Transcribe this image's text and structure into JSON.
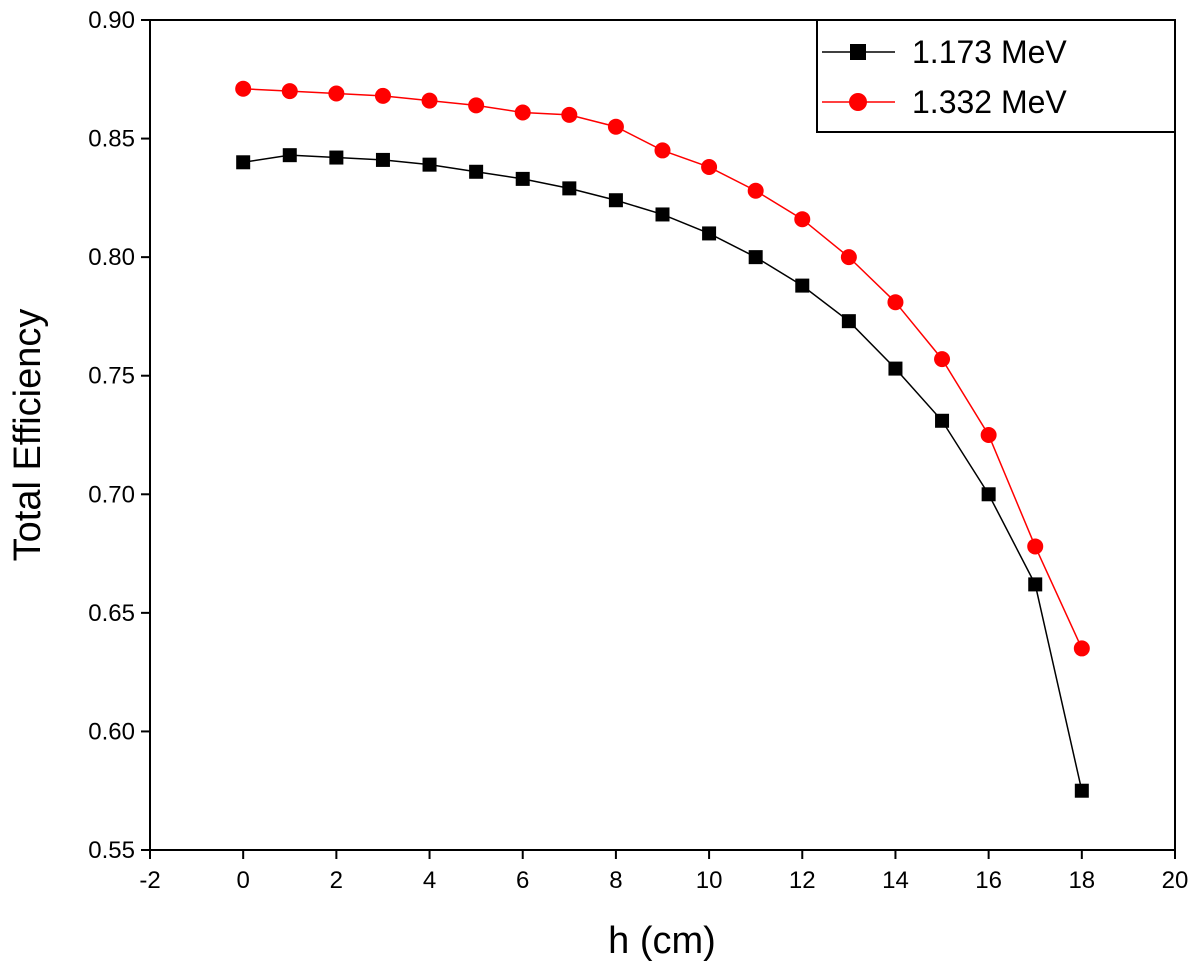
{
  "chart_data": {
    "type": "line",
    "title": "",
    "xlabel": "h (cm)",
    "ylabel": "Total Efficiency",
    "xlim": [
      -2,
      20
    ],
    "ylim": [
      0.55,
      0.9
    ],
    "x_ticks": [
      -2,
      0,
      2,
      4,
      6,
      8,
      10,
      12,
      14,
      16,
      18,
      20
    ],
    "x_tick_labels": [
      "-2",
      "0",
      "2",
      "4",
      "6",
      "8",
      "10",
      "12",
      "14",
      "16",
      "18",
      "20"
    ],
    "y_ticks": [
      0.55,
      0.6,
      0.65,
      0.7,
      0.75,
      0.8,
      0.85,
      0.9
    ],
    "y_tick_labels": [
      "0.55",
      "0.60",
      "0.65",
      "0.70",
      "0.75",
      "0.80",
      "0.85",
      "0.90"
    ],
    "grid": false,
    "legend_position": "top-right",
    "x": [
      0,
      1,
      2,
      3,
      4,
      5,
      6,
      7,
      8,
      9,
      10,
      11,
      12,
      13,
      14,
      15,
      16,
      17,
      18
    ],
    "series": [
      {
        "name": "1.173 MeV",
        "color": "#000000",
        "marker": "square",
        "values": [
          0.84,
          0.843,
          0.842,
          0.841,
          0.839,
          0.836,
          0.833,
          0.829,
          0.824,
          0.818,
          0.81,
          0.8,
          0.788,
          0.773,
          0.753,
          0.731,
          0.7,
          0.662,
          0.575
        ]
      },
      {
        "name": "1.332 MeV",
        "color": "#ff0000",
        "marker": "circle",
        "values": [
          0.871,
          0.87,
          0.869,
          0.868,
          0.866,
          0.864,
          0.861,
          0.86,
          0.855,
          0.845,
          0.838,
          0.828,
          0.816,
          0.8,
          0.781,
          0.757,
          0.725,
          0.678,
          0.635
        ]
      }
    ]
  }
}
